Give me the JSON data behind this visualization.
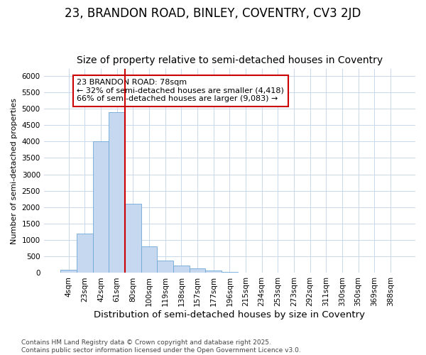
{
  "title": "23, BRANDON ROAD, BINLEY, COVENTRY, CV3 2JD",
  "subtitle": "Size of property relative to semi-detached houses in Coventry",
  "xlabel": "Distribution of semi-detached houses by size in Coventry",
  "ylabel": "Number of semi-detached properties",
  "categories": [
    "4sqm",
    "23sqm",
    "42sqm",
    "61sqm",
    "80sqm",
    "100sqm",
    "119sqm",
    "138sqm",
    "157sqm",
    "177sqm",
    "196sqm",
    "215sqm",
    "234sqm",
    "253sqm",
    "273sqm",
    "292sqm",
    "311sqm",
    "330sqm",
    "350sqm",
    "369sqm",
    "388sqm"
  ],
  "values": [
    100,
    1200,
    4000,
    4900,
    2100,
    800,
    370,
    230,
    150,
    80,
    35,
    0,
    0,
    0,
    0,
    0,
    0,
    0,
    0,
    0,
    0
  ],
  "bar_color": "#c5d8f0",
  "bar_edge_color": "#6fa8d6",
  "annotation_text_line1": "23 BRANDON ROAD: 78sqm",
  "annotation_text_line2": "← 32% of semi-detached houses are smaller (4,418)",
  "annotation_text_line3": "66% of semi-detached houses are larger (9,083) →",
  "annotation_box_color": "#ffffff",
  "annotation_box_edge_color": "#cc0000",
  "vline_color": "#cc0000",
  "vline_x_index": 4,
  "ylim": [
    0,
    6200
  ],
  "yticks": [
    0,
    500,
    1000,
    1500,
    2000,
    2500,
    3000,
    3500,
    4000,
    4500,
    5000,
    5500,
    6000
  ],
  "background_color": "#ffffff",
  "grid_color": "#c8d8ec",
  "footer": "Contains HM Land Registry data © Crown copyright and database right 2025.\nContains public sector information licensed under the Open Government Licence v3.0.",
  "title_fontsize": 12,
  "subtitle_fontsize": 10,
  "xlabel_fontsize": 9.5,
  "ylabel_fontsize": 8,
  "tick_fontsize": 7.5,
  "annotation_fontsize": 8,
  "footer_fontsize": 6.5
}
